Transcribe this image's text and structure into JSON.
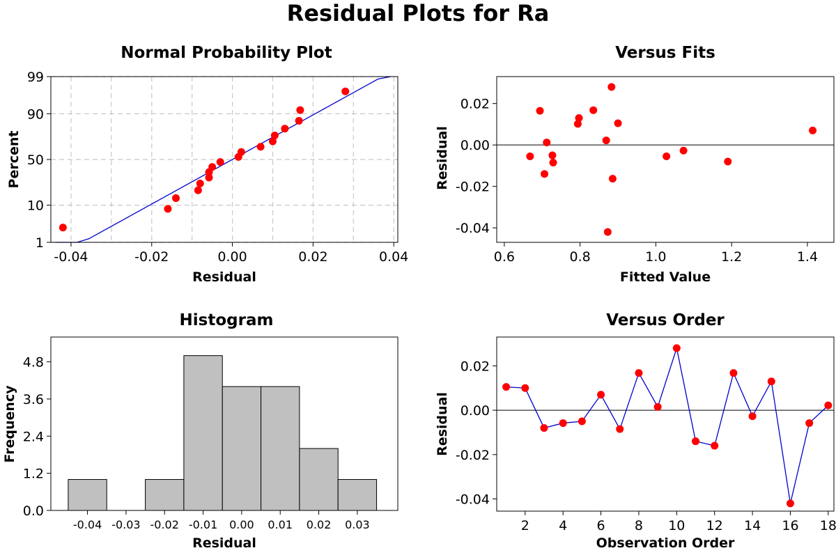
{
  "title": "Residual Plots for Ra",
  "chart_data": [
    {
      "id": "normal",
      "type": "scatter",
      "title": "Normal Probability Plot",
      "xlabel": "Residual",
      "ylabel": "Percent",
      "xlim": [
        -0.045,
        0.041
      ],
      "ylim_percent": [
        1,
        99
      ],
      "y_scale": "normal-probability",
      "xticks": [
        -0.04,
        -0.02,
        0.0,
        0.02,
        0.04
      ],
      "xtick_labels": [
        "-0.04",
        "-0.02",
        "0.00",
        "0.02",
        "0.04"
      ],
      "yticks": [
        1,
        10,
        50,
        90,
        99
      ],
      "ytick_labels": [
        "1",
        "10",
        "50",
        "90",
        "99"
      ],
      "xgrid": [
        -0.04,
        -0.03,
        -0.02,
        -0.01,
        0.0,
        0.01,
        0.02,
        0.03,
        0.04
      ],
      "ygrid": [
        1,
        10,
        50,
        90,
        99
      ],
      "grid": true,
      "fit_line": {
        "mean": 0.0,
        "sd": 0.016
      },
      "points": [
        {
          "x": -0.042,
          "y": 2.8
        },
        {
          "x": -0.016,
          "y": 8.3
        },
        {
          "x": -0.014,
          "y": 13.9
        },
        {
          "x": -0.0085,
          "y": 19.4
        },
        {
          "x": -0.008,
          "y": 25.0
        },
        {
          "x": -0.0058,
          "y": 30.6
        },
        {
          "x": -0.0058,
          "y": 36.1
        },
        {
          "x": -0.005,
          "y": 41.7
        },
        {
          "x": -0.003,
          "y": 47.2
        },
        {
          "x": 0.0015,
          "y": 52.8
        },
        {
          "x": 0.0022,
          "y": 58.3
        },
        {
          "x": 0.007,
          "y": 63.9
        },
        {
          "x": 0.01,
          "y": 69.4
        },
        {
          "x": 0.0105,
          "y": 75.0
        },
        {
          "x": 0.013,
          "y": 80.6
        },
        {
          "x": 0.0165,
          "y": 86.1
        },
        {
          "x": 0.0168,
          "y": 91.7
        },
        {
          "x": 0.028,
          "y": 97.2
        }
      ]
    },
    {
      "id": "fits",
      "type": "scatter",
      "title": "Versus Fits",
      "xlabel": "Fitted Value",
      "ylabel": "Residual",
      "xlim": [
        0.58,
        1.47
      ],
      "ylim": [
        -0.047,
        0.033
      ],
      "xticks": [
        0.6,
        0.8,
        1.0,
        1.2,
        1.4
      ],
      "xtick_labels": [
        "0.6",
        "0.8",
        "1.0",
        "1.2",
        "1.4"
      ],
      "yticks": [
        -0.04,
        -0.02,
        0.0,
        0.02
      ],
      "ytick_labels": [
        "-0.04",
        "-0.02",
        "0.00",
        "0.02"
      ],
      "reference_line": 0,
      "points": [
        {
          "x": 0.668,
          "y": -0.0055
        },
        {
          "x": 0.694,
          "y": 0.0165
        },
        {
          "x": 0.706,
          "y": -0.014
        },
        {
          "x": 0.712,
          "y": 0.0012
        },
        {
          "x": 0.727,
          "y": -0.005
        },
        {
          "x": 0.729,
          "y": -0.0085
        },
        {
          "x": 0.794,
          "y": 0.0102
        },
        {
          "x": 0.797,
          "y": 0.013
        },
        {
          "x": 0.835,
          "y": 0.0168
        },
        {
          "x": 0.869,
          "y": 0.0022
        },
        {
          "x": 0.873,
          "y": -0.042
        },
        {
          "x": 0.883,
          "y": 0.028
        },
        {
          "x": 0.886,
          "y": -0.0163
        },
        {
          "x": 0.9,
          "y": 0.0105
        },
        {
          "x": 1.028,
          "y": -0.0055
        },
        {
          "x": 1.073,
          "y": -0.0027
        },
        {
          "x": 1.19,
          "y": -0.008
        },
        {
          "x": 1.414,
          "y": 0.007
        }
      ]
    },
    {
      "id": "hist",
      "type": "bar",
      "title": "Histogram",
      "xlabel": "Residual",
      "ylabel": "Frequency",
      "bin_width": 0.01,
      "xlim": [
        -0.0495,
        0.0405
      ],
      "ylim": [
        0,
        5.6
      ],
      "bins": [
        {
          "center": -0.04,
          "count": 1
        },
        {
          "center": -0.03,
          "count": 0
        },
        {
          "center": -0.02,
          "count": 1
        },
        {
          "center": -0.01,
          "count": 5
        },
        {
          "center": 0.0,
          "count": 4
        },
        {
          "center": 0.01,
          "count": 4
        },
        {
          "center": 0.02,
          "count": 2
        },
        {
          "center": 0.03,
          "count": 1
        }
      ],
      "xticks": [
        -0.04,
        -0.03,
        -0.02,
        -0.01,
        0.0,
        0.01,
        0.02,
        0.03
      ],
      "xtick_labels": [
        "-0.04",
        "-0.03",
        "-0.02",
        "-0.01",
        "0.00",
        "0.01",
        "0.02",
        "0.03"
      ],
      "yticks": [
        0,
        1.2,
        2.4,
        3.6,
        4.8
      ],
      "ytick_labels": [
        "0.0",
        "1.2",
        "2.4",
        "3.6",
        "4.8"
      ],
      "bar_color": "#c0c0c0"
    },
    {
      "id": "order",
      "type": "line",
      "title": "Versus Order",
      "xlabel": "Observation Order",
      "ylabel": "Residual",
      "xlim": [
        0.5,
        18.3
      ],
      "ylim": [
        -0.0455,
        0.033
      ],
      "xticks": [
        2,
        4,
        6,
        8,
        10,
        12,
        14,
        16,
        18
      ],
      "xtick_labels": [
        "2",
        "4",
        "6",
        "8",
        "10",
        "12",
        "14",
        "16",
        "18"
      ],
      "yticks": [
        -0.04,
        -0.02,
        0.0,
        0.02
      ],
      "ytick_labels": [
        "-0.04",
        "-0.02",
        "0.00",
        "0.02"
      ],
      "reference_line": 0,
      "x": [
        1,
        2,
        3,
        4,
        5,
        6,
        7,
        8,
        9,
        10,
        11,
        12,
        13,
        14,
        15,
        16,
        17,
        18
      ],
      "y": [
        0.0105,
        0.01,
        -0.008,
        -0.0058,
        -0.005,
        0.007,
        -0.0085,
        0.0168,
        0.0015,
        0.028,
        -0.014,
        -0.016,
        0.0168,
        -0.0027,
        0.013,
        -0.042,
        -0.0058,
        0.0022
      ]
    }
  ],
  "colors": {
    "point": "#ff0000",
    "line": "#0000cc",
    "bar": "#c0c0c0",
    "grid": "#c8c8c8"
  }
}
